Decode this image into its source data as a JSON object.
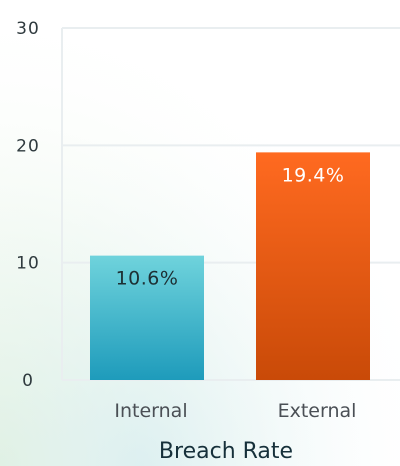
{
  "chart_data": {
    "type": "bar",
    "categories": [
      "Internal",
      "External"
    ],
    "values": [
      10.6,
      19.4
    ],
    "data_labels": [
      "10.6%",
      "19.4%"
    ],
    "title": "",
    "xlabel": "Breach Rate",
    "ylabel": "",
    "ylim": [
      0,
      30
    ],
    "yticks": [
      "0",
      "10",
      "20",
      "30"
    ],
    "grid": true,
    "legend": "none",
    "colors": {
      "internal_top": "#6fd3dc",
      "internal_bottom": "#1e9bbb",
      "external_top": "#ff6a20",
      "external_bottom": "#c94a08",
      "internal_label": "#1d2f33",
      "external_label": "#ffffff",
      "grid": "#e9eef0"
    }
  }
}
